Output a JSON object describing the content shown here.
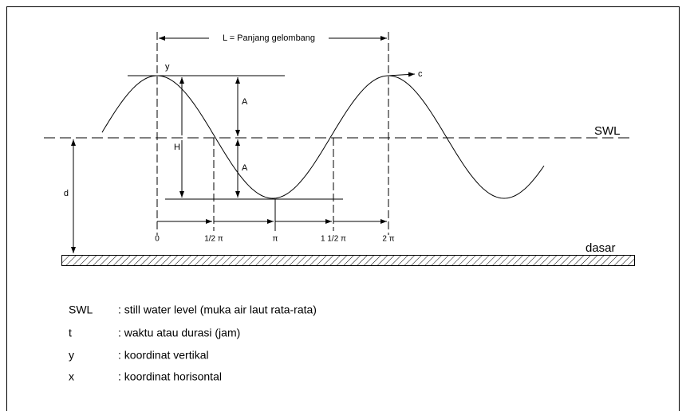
{
  "diagram": {
    "wavelength_label": "L = Panjang gelombang",
    "y_axis_label": "y",
    "celerity_label": "c",
    "amplitude_labels": [
      "A",
      "A"
    ],
    "height_label": "H",
    "depth_label": "d",
    "swl_label": "SWL",
    "bed_label": "dasar",
    "phase_labels": [
      "0",
      "1/2 π",
      "π",
      "1 1/2 π",
      "2 π"
    ]
  },
  "legend": [
    {
      "term": "SWL",
      "definition": ": still water level (muka air laut rata-rata)"
    },
    {
      "term": "t",
      "definition": ": waktu atau durasi (jam)"
    },
    {
      "term": "y",
      "definition": ": koordinat vertikal"
    },
    {
      "term": "x",
      "definition": ": koordinat horisontal"
    }
  ]
}
